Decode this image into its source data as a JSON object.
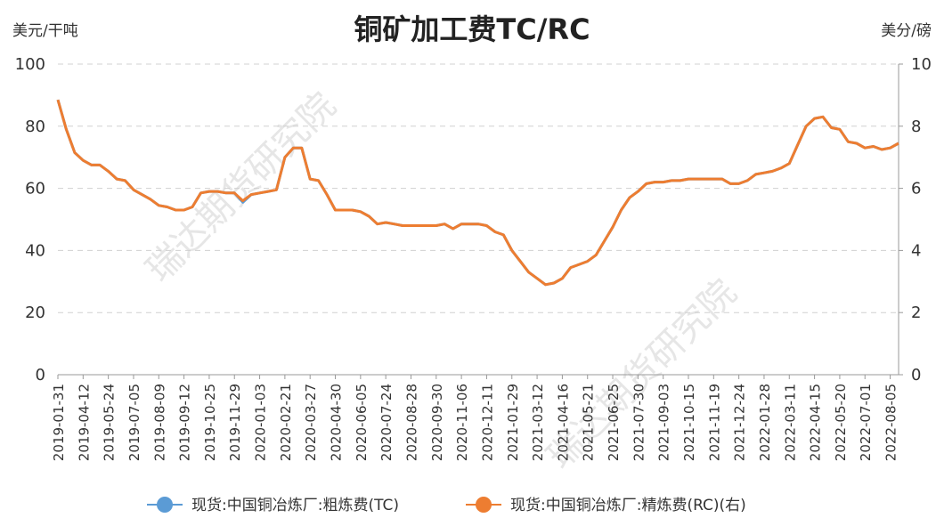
{
  "chart_data": {
    "type": "line",
    "title": "铜矿加工费TC/RC",
    "y_label": "美元/干吨",
    "y2_label": "美分/磅",
    "watermark": "瑞达期货研究院",
    "categories": [
      "2019-01-31",
      null,
      null,
      "2019-04-12",
      null,
      null,
      "2019-05-24",
      null,
      null,
      "2019-07-05",
      null,
      null,
      "2019-08-09",
      null,
      null,
      "2019-09-12",
      null,
      null,
      "2019-10-25",
      null,
      null,
      "2019-11-29",
      null,
      null,
      "2020-01-03",
      null,
      null,
      "2020-02-21",
      null,
      null,
      "2020-03-27",
      null,
      null,
      "2020-04-30",
      null,
      null,
      "2020-06-05",
      null,
      null,
      "2020-07-24",
      null,
      null,
      "2020-08-28",
      null,
      null,
      "2020-09-30",
      null,
      null,
      "2020-11-06",
      null,
      null,
      "2020-12-11",
      null,
      null,
      "2021-01-29",
      null,
      null,
      "2021-03-12",
      null,
      null,
      "2021-04-16",
      null,
      null,
      "2021-05-21",
      null,
      null,
      "2021-06-25",
      null,
      null,
      "2021-07-30",
      null,
      null,
      "2021-09-03",
      null,
      null,
      "2021-10-15",
      null,
      null,
      "2021-11-19",
      null,
      null,
      "2021-12-24",
      null,
      null,
      "2022-01-28",
      null,
      null,
      "2022-03-11",
      null,
      null,
      "2022-04-15",
      null,
      null,
      "2022-05-20",
      null,
      null,
      "2022-07-01",
      null,
      null,
      "2022-08-05",
      null
    ],
    "series": [
      {
        "name": "现货:中国铜冶炼厂:粗炼费(TC)",
        "color": "#5b9bd5",
        "values": [
          88.5,
          79,
          71.5,
          69,
          67.5,
          67.5,
          65.5,
          63,
          62.5,
          59.5,
          58,
          56.5,
          54.5,
          54,
          53,
          53,
          54,
          58.5,
          59,
          59,
          58.5,
          58.5,
          55.5,
          58,
          58.5,
          59,
          59.5,
          70,
          73,
          73,
          63,
          62.5,
          58,
          53,
          53,
          53,
          52.5,
          51,
          48.5,
          49,
          48.5,
          48,
          48,
          48,
          48,
          48,
          48.5,
          47,
          48.5,
          48.5,
          48.5,
          48,
          46,
          45,
          40,
          36.5,
          33,
          31,
          29,
          29.5,
          31,
          34.5,
          35.5,
          36.5,
          38.5,
          43,
          47.5,
          53,
          57,
          59,
          61.5,
          62,
          62,
          62.5,
          62.5,
          63,
          63,
          63,
          63,
          63,
          61.5,
          61.5,
          62.5,
          64.5,
          65,
          65.5,
          66.5,
          68,
          74,
          80,
          82.5,
          83,
          79.5,
          79,
          75,
          74.5,
          73,
          73.5,
          72.5,
          73,
          74.5
        ]
      },
      {
        "name": "现货:中国铜冶炼厂:精炼费(RC)(右)",
        "color": "#ed7d31",
        "axis": "y2",
        "values": [
          8.85,
          7.9,
          7.15,
          6.9,
          6.75,
          6.75,
          6.55,
          6.3,
          6.25,
          5.95,
          5.8,
          5.65,
          5.45,
          5.4,
          5.3,
          5.3,
          5.4,
          5.85,
          5.9,
          5.9,
          5.85,
          5.85,
          5.6,
          5.8,
          5.85,
          5.9,
          5.95,
          7,
          7.3,
          7.3,
          6.3,
          6.25,
          5.8,
          5.3,
          5.3,
          5.3,
          5.25,
          5.1,
          4.85,
          4.9,
          4.85,
          4.8,
          4.8,
          4.8,
          4.8,
          4.8,
          4.85,
          4.7,
          4.85,
          4.85,
          4.85,
          4.8,
          4.6,
          4.5,
          4,
          3.65,
          3.3,
          3.1,
          2.9,
          2.95,
          3.1,
          3.45,
          3.55,
          3.65,
          3.85,
          4.3,
          4.75,
          5.3,
          5.7,
          5.9,
          6.15,
          6.2,
          6.2,
          6.25,
          6.25,
          6.3,
          6.3,
          6.3,
          6.3,
          6.3,
          6.15,
          6.15,
          6.25,
          6.45,
          6.5,
          6.55,
          6.65,
          6.8,
          7.4,
          8,
          8.25,
          8.3,
          7.95,
          7.9,
          7.5,
          7.45,
          7.3,
          7.35,
          7.25,
          7.3,
          7.45
        ]
      }
    ],
    "ylim": [
      0,
      100
    ],
    "yticks": [
      0,
      20,
      40,
      60,
      80,
      100
    ],
    "y2lim": [
      0,
      10
    ],
    "y2ticks": [
      0,
      2,
      4,
      6,
      8,
      10
    ],
    "grid": true,
    "legend": "bottom"
  }
}
